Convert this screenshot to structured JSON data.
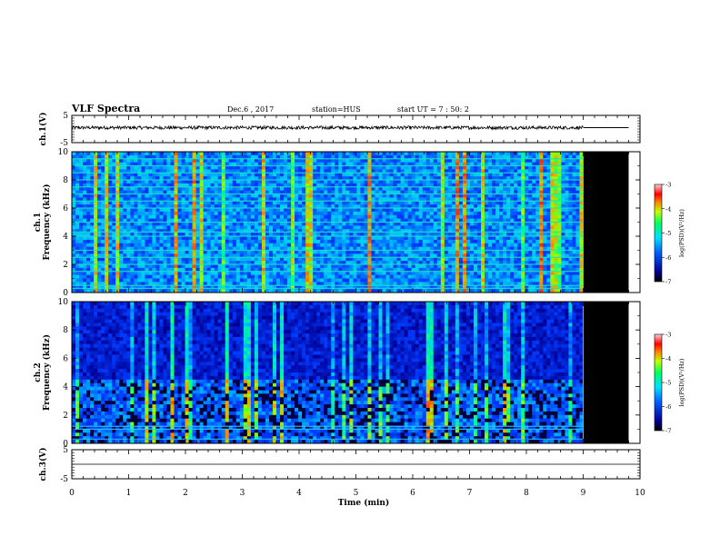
{
  "header": {
    "title": "VLF Spectra",
    "date": "Dec.6 , 2017",
    "station": "station=HUS",
    "start": "start UT =  7 : 50: 2"
  },
  "chart_data": [
    {
      "id": "ch1-waveform",
      "type": "line",
      "ylabel": "ch.1(V)",
      "ylim": [
        -5,
        5
      ],
      "yticks": [
        "5",
        "-5"
      ],
      "xlim": [
        0,
        10
      ],
      "description_values": {
        "baseline": 0.5,
        "noise_amplitude": 0.6,
        "data_end_min": 9.0,
        "flat_to_min": 9.8
      }
    },
    {
      "id": "ch1-spectrogram",
      "type": "heatmap",
      "ylabel": "ch.1\nFrequency (kHz)",
      "ylim": [
        0,
        10
      ],
      "yticks": [
        "0",
        "2",
        "4",
        "6",
        "8",
        "10"
      ],
      "xlim": [
        0,
        10
      ],
      "data_end_min": 9.0,
      "black_fill_to_min": 9.8,
      "colorbar": {
        "label": "log(PSD)(V²/Hz)",
        "range": [
          -7,
          -3
        ],
        "ticks": [
          "-3",
          "-4",
          "-5",
          "-6",
          "-7"
        ]
      },
      "bright_bands_khz": [
        0.3,
        0.5,
        1.5,
        2.0,
        2.5,
        3.0,
        4.0,
        4.3,
        5.0,
        6.0,
        6.5,
        7.0,
        7.5,
        8.0,
        8.5,
        9.0,
        9.5
      ]
    },
    {
      "id": "ch2-spectrogram",
      "type": "heatmap",
      "ylabel": "ch.2\nFrequency (kHz)",
      "ylim": [
        0,
        10
      ],
      "yticks": [
        "0",
        "2",
        "4",
        "6",
        "8",
        "10"
      ],
      "xlim": [
        0,
        10
      ],
      "data_end_min": 9.0,
      "black_fill_to_min": 9.8,
      "colorbar": {
        "label": "log(PSD)(V²/Hz)",
        "range": [
          -7,
          -3
        ],
        "ticks": [
          "-3",
          "-4",
          "-5",
          "-6",
          "-7"
        ]
      },
      "bright_bands_khz": [
        0.3,
        1.0,
        1.2
      ]
    },
    {
      "id": "ch3-waveform",
      "type": "line",
      "ylabel": "ch.3(V)",
      "ylim": [
        -5,
        5
      ],
      "yticks": [
        "5",
        "-5"
      ],
      "xlim": [
        0,
        10
      ],
      "description_values": {
        "baseline": 0.0,
        "noise_amplitude": 0.0,
        "data_end_min": 10.0
      }
    }
  ],
  "x_axis": {
    "label": "Time (min)",
    "ticks": [
      "0",
      "1",
      "2",
      "3",
      "4",
      "5",
      "6",
      "7",
      "8",
      "9",
      "10"
    ]
  },
  "colors": {
    "spectro_low": "#000080",
    "spectro_mid": "#00c8ff",
    "spectro_high": "#ff0000",
    "fill_black": "#000000"
  }
}
